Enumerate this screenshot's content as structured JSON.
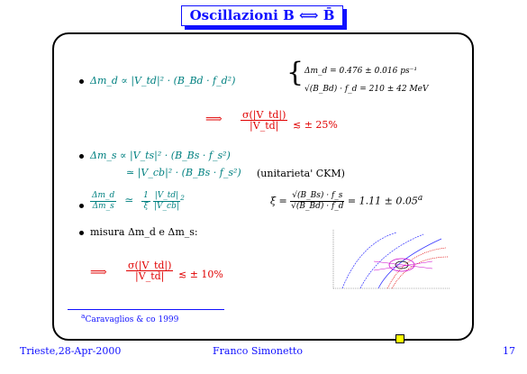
{
  "title": "Oscillazioni B ⟺ B̄",
  "bullets": {
    "b1": "Δm_d ∝ |V_td|² · (B_Bd · f_d²)",
    "b1_eq1": "Δm_d = 0.476 ± 0.016 ps⁻¹",
    "b1_eq2": "√(B_Bd) · f_d = 210 ± 42 MeV",
    "arrow1_lhs": "⟹",
    "arrow1_num": "σ(|V_td|)",
    "arrow1_den": "|V_td|",
    "arrow1_rhs": "≲ ± 25%",
    "b2_line1": "Δm_s ∝ |V_ts|² · (B_Bs · f_s²)",
    "b2_line2": "≃ |V_cb|² · (B_Bs · f_s²)",
    "b2_note": "(unitarieta' CKM)",
    "b3_lhs_num": "Δm_d",
    "b3_lhs_den": "Δm_s",
    "b3_rel": "≃",
    "b3_rhs_num": "1",
    "b3_rhs_den": "ξ",
    "b3_rhs_frac_num": "|V_td|",
    "b3_rhs_frac_den": "|V_cb|",
    "b3_rhs_exp": "2",
    "xi_lhs": "ξ =",
    "xi_num": "√(B_Bs) · f_s",
    "xi_den": "√(B_Bd) · f_d",
    "xi_rhs": "= 1.11 ± 0.05",
    "xi_footmark": "a",
    "b4": "misura Δm_d e Δm_s:",
    "arrow2_lhs": "⟹",
    "arrow2_num": "σ(|V_td|)",
    "arrow2_den": "|V_td|",
    "arrow2_rhs": "≲ ± 10%"
  },
  "footnote": {
    "mark": "a",
    "text": "Caravaglios & co 1999"
  },
  "footer": {
    "left": "Trieste,28-Apr-2000",
    "center": "Franco Simonetto",
    "page": "17"
  },
  "colors": {
    "title_blue": "#1010ff",
    "teal": "#008080",
    "red": "#e00000"
  }
}
